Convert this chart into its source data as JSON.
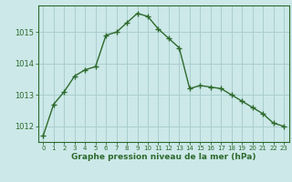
{
  "x": [
    0,
    1,
    2,
    3,
    4,
    5,
    6,
    7,
    8,
    9,
    10,
    11,
    12,
    13,
    14,
    15,
    16,
    17,
    18,
    19,
    20,
    21,
    22,
    23
  ],
  "y": [
    1011.7,
    1012.7,
    1013.1,
    1013.6,
    1013.8,
    1013.9,
    1014.9,
    1015.0,
    1015.3,
    1015.6,
    1015.5,
    1015.1,
    1014.8,
    1014.5,
    1013.2,
    1013.3,
    1013.25,
    1013.2,
    1013.0,
    1012.8,
    1012.6,
    1012.4,
    1012.1,
    1012.0
  ],
  "line_color": "#2d6a2d",
  "marker": "+",
  "bg_color": "#cce8e8",
  "grid_color": "#aacece",
  "xlabel": "Graphe pression niveau de la mer (hPa)",
  "xlabel_color": "#2d6a2d",
  "yticks": [
    1012,
    1013,
    1014,
    1015
  ],
  "ylim": [
    1011.5,
    1015.85
  ],
  "xlim": [
    -0.5,
    23.5
  ],
  "tick_color": "#2d6a2d",
  "spine_color": "#2d6a2d"
}
